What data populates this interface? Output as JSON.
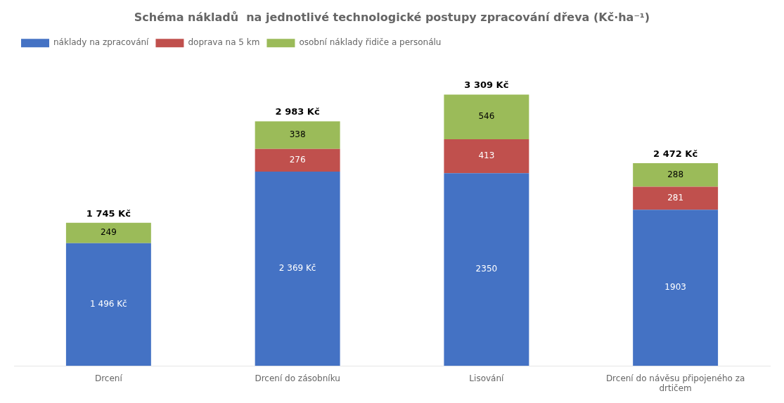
{
  "chart_data": {
    "type": "bar",
    "title": "Schéma nákladů  na jednotlivé technologické postupy zpracování dřeva (Kč·ha⁻¹)",
    "categories": [
      "Drcení",
      "Drcení do zásobníku",
      "Lisování",
      "Drcení do návěsu připojeného za\ndrtičem"
    ],
    "series": [
      {
        "name": "náklady na zpracování",
        "color": "#4472C4",
        "values": [
          1496,
          2369,
          2350,
          1903
        ],
        "value_labels": [
          "1 496 Kč",
          "2 369 Kč",
          "2350",
          "1903"
        ]
      },
      {
        "name": "doprava na 5 km",
        "color": "#C0504D",
        "values": [
          0,
          276,
          413,
          281
        ],
        "value_labels": [
          null,
          "276",
          "413",
          "281"
        ]
      },
      {
        "name": "osobní náklady řidiče a personálu",
        "color": "#9BBB59",
        "values": [
          249,
          338,
          546,
          288
        ]
      }
    ],
    "totals": [
      1745,
      2983,
      3309,
      2472
    ],
    "total_labels": [
      "1 745 Kč",
      "2 983 Kč",
      "3 309 Kč",
      "2 472 Kč"
    ],
    "ylim": [
      0,
      3800
    ],
    "stacked": true,
    "data_labels": true,
    "tick_labels": "x",
    "grid": false,
    "legend": "upper left"
  }
}
